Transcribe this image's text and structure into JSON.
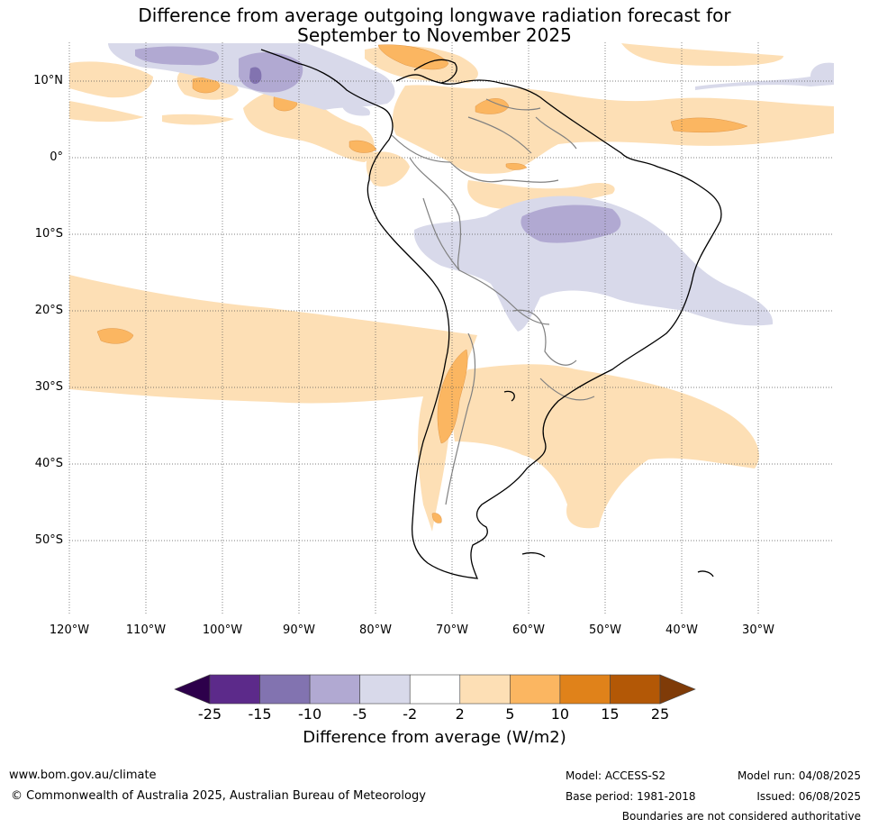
{
  "title": {
    "line1": "Difference from average outgoing longwave radiation forecast for",
    "line2": "September to November 2025"
  },
  "axes": {
    "lat_labels": [
      "10°N",
      "0°",
      "10°S",
      "20°S",
      "30°S",
      "40°S",
      "50°S"
    ],
    "lon_labels": [
      "120°W",
      "110°W",
      "100°W",
      "90°W",
      "80°W",
      "70°W",
      "60°W",
      "50°W",
      "40°W",
      "30°W"
    ]
  },
  "colorbar": {
    "title": "Difference from average (W/m2)",
    "ticks": [
      "-25",
      "-15",
      "-10",
      "-5",
      "-2",
      "2",
      "5",
      "10",
      "15",
      "25"
    ],
    "colors": [
      "#2d004b",
      "#5c2a8a",
      "#8273b0",
      "#b1a9d2",
      "#d8d9ea",
      "#ffffff",
      "#fddfb5",
      "#fbb661",
      "#e0821a",
      "#b35806",
      "#7f3b08"
    ]
  },
  "map_colors": {
    "ocean_light_orange": "#fddfb5",
    "orange": "#fbb661",
    "light_purple": "#d8d9ea",
    "purple": "#b1a9d2",
    "dark_purple": "#8273b0",
    "coast": "#000000",
    "border": "#808080"
  },
  "footer": {
    "url": "www.bom.gov.au/climate",
    "copyright": "© Commonwealth of Australia 2025, Australian Bureau of Meteorology",
    "model": "Model: ACCESS-S2",
    "base_period": "Base period: 1981-2018",
    "model_run": "Model run: 04/08/2025",
    "issued": "Issued: 06/08/2025",
    "disclaimer": "Boundaries are not considered authoritative"
  }
}
